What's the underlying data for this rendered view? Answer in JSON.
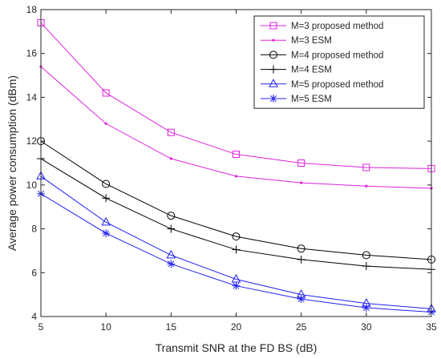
{
  "chart_data": {
    "type": "line",
    "title": "",
    "xlabel": "Transmit SNR at the FD BS (dB)",
    "ylabel": "Average power consumption (dBm)",
    "xlim": [
      5,
      35
    ],
    "ylim": [
      4,
      18
    ],
    "xticks": [
      5,
      10,
      15,
      20,
      25,
      30,
      35
    ],
    "yticks": [
      4,
      6,
      8,
      10,
      12,
      14,
      16,
      18
    ],
    "grid": false,
    "legend_position": "top-right",
    "x": [
      5,
      10,
      15,
      20,
      25,
      30,
      35
    ],
    "series": [
      {
        "name": "M=3 proposed method",
        "color": "#e020e0",
        "marker": "square",
        "values": [
          17.4,
          14.2,
          12.4,
          11.4,
          11.0,
          10.8,
          10.75
        ]
      },
      {
        "name": "M=3 ESM",
        "color": "#e020e0",
        "marker": "dot",
        "values": [
          15.4,
          12.8,
          11.2,
          10.4,
          10.1,
          9.95,
          9.85
        ]
      },
      {
        "name": "M=4 proposed method",
        "color": "#000000",
        "marker": "circle",
        "values": [
          12.0,
          10.05,
          8.6,
          7.65,
          7.1,
          6.8,
          6.6
        ]
      },
      {
        "name": "M=4 ESM",
        "color": "#000000",
        "marker": "plus",
        "values": [
          11.2,
          9.4,
          8.0,
          7.05,
          6.6,
          6.3,
          6.15
        ]
      },
      {
        "name": "M=5 proposed method",
        "color": "#2020ee",
        "marker": "triangle",
        "values": [
          10.4,
          8.3,
          6.8,
          5.7,
          5.0,
          4.6,
          4.35
        ]
      },
      {
        "name": "M=5 ESM",
        "color": "#2020ee",
        "marker": "asterisk",
        "values": [
          9.6,
          7.8,
          6.4,
          5.4,
          4.8,
          4.4,
          4.2
        ]
      }
    ]
  }
}
